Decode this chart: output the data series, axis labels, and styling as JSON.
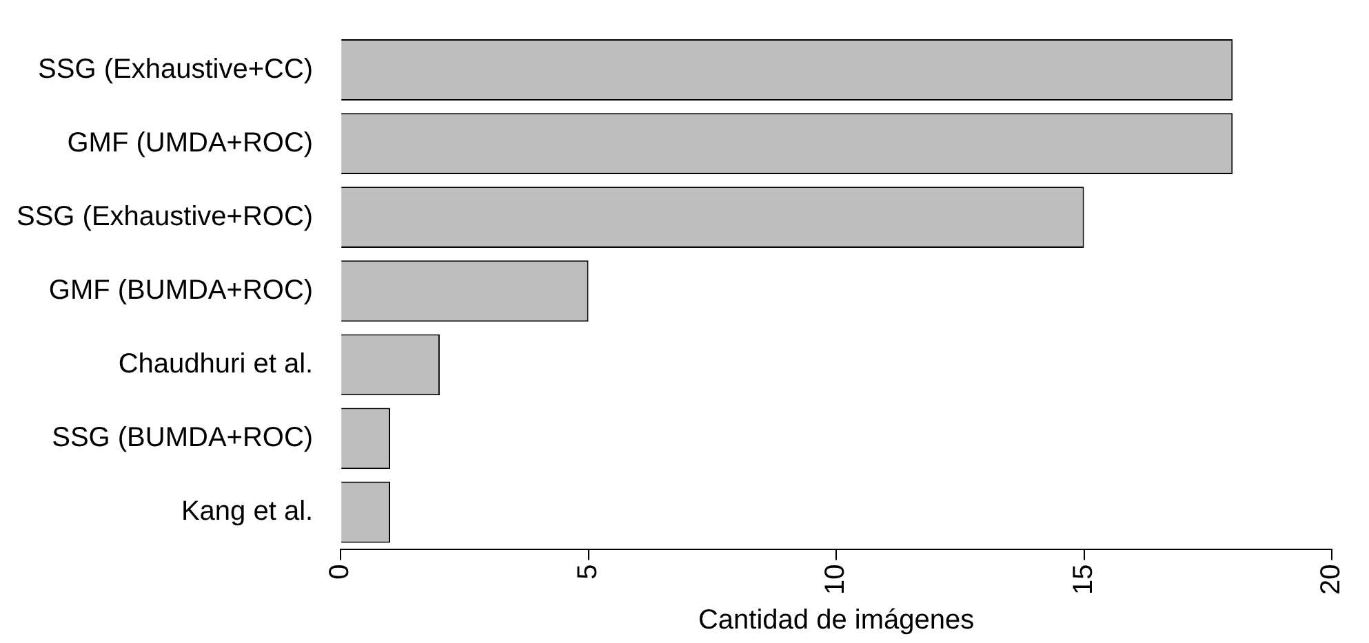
{
  "chart_data": {
    "type": "bar",
    "orientation": "horizontal",
    "xlabel": "Cantidad de imágenes",
    "categories": [
      "SSG (Exhaustive+CC)",
      "GMF (UMDA+ROC)",
      "SSG (Exhaustive+ROC)",
      "GMF (BUMDA+ROC)",
      "Chaudhuri et al.",
      "SSG (BUMDA+ROC)",
      "Kang et al."
    ],
    "values": [
      18,
      18,
      15,
      5,
      2,
      1,
      1
    ],
    "color": "#bebebe",
    "xlim": [
      0,
      20
    ],
    "xticks": [
      0,
      5,
      10,
      15,
      20
    ],
    "grid": false,
    "legend": false
  }
}
